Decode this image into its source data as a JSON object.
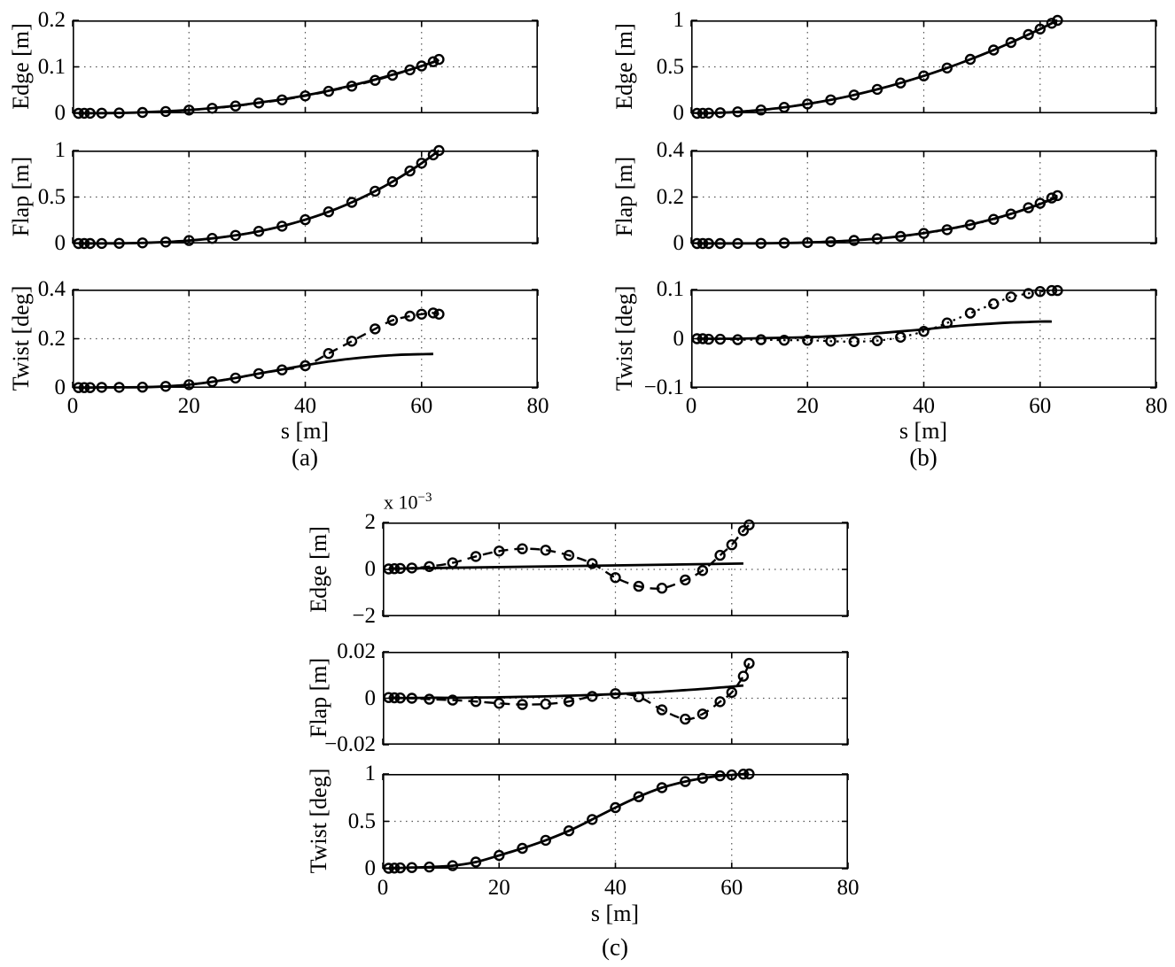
{
  "chart_data": {
    "type": "line",
    "description": "Nine-panel comparison figure: solid line vs circle-marker series of Edge, Flap and Twist distributions along blade span s.",
    "stations": [
      1,
      2,
      3,
      5,
      8,
      12,
      16,
      20,
      24,
      28,
      32,
      36,
      40,
      44,
      48,
      52,
      55,
      58,
      60,
      62,
      63
    ],
    "xaxis": {
      "label": "s [m]",
      "lim": [
        0,
        80
      ],
      "tick_values": [
        0,
        20,
        40,
        60,
        80
      ],
      "ticks": [
        "0",
        "20",
        "40",
        "60",
        "80"
      ],
      "grid": [
        20,
        40,
        60
      ]
    },
    "figures": [
      {
        "id": "a",
        "caption": "(a)",
        "xlabel": "s [m]",
        "panels": [
          {
            "id": "edge",
            "ylabel": "Edge [m]",
            "ylim": [
              0,
              0.2
            ],
            "yticks": [
              {
                "v": 0,
                "t": "0"
              },
              {
                "v": 0.1,
                "t": "0.1"
              },
              {
                "v": 0.2,
                "t": "0.2"
              }
            ],
            "grid_y": [
              0.1
            ],
            "series": [
              {
                "name": "solid-line",
                "style": "solid",
                "y": [
                  0,
                  0.0001,
                  0.0002,
                  0.0003,
                  0.0008,
                  0.0022,
                  0.0043,
                  0.0073,
                  0.0113,
                  0.0164,
                  0.023,
                  0.03,
                  0.0387,
                  0.0486,
                  0.06,
                  0.0725,
                  0.083,
                  0.094,
                  0.102,
                  0.11,
                  0.115
                ]
              },
              {
                "name": "circle-markers",
                "style": "dashed",
                "markers": true,
                "y": [
                  0,
                  0.0001,
                  0.0002,
                  0.0003,
                  0.0008,
                  0.002,
                  0.004,
                  0.007,
                  0.0108,
                  0.0158,
                  0.0222,
                  0.029,
                  0.0375,
                  0.0475,
                  0.0585,
                  0.071,
                  0.082,
                  0.0935,
                  0.102,
                  0.111,
                  0.116
                ]
              }
            ]
          },
          {
            "id": "flap",
            "ylabel": "Flap [m]",
            "ylim": [
              0,
              1
            ],
            "yticks": [
              {
                "v": 0,
                "t": "0"
              },
              {
                "v": 0.5,
                "t": "0.5"
              },
              {
                "v": 1,
                "t": "1"
              }
            ],
            "grid_y": [
              0.5
            ],
            "series": [
              {
                "name": "solid-line",
                "style": "solid",
                "y": [
                  0,
                  0,
                  0.0001,
                  0.0005,
                  0.002,
                  0.0069,
                  0.0164,
                  0.032,
                  0.0553,
                  0.0878,
                  0.1311,
                  0.1866,
                  0.256,
                  0.3406,
                  0.4424,
                  0.5624,
                  0.6652,
                  0.7797,
                  0.8638,
                  0.953,
                  1
                ]
              },
              {
                "name": "circle-markers",
                "style": "dashed",
                "markers": true,
                "y": [
                  0,
                  0,
                  0.0001,
                  0.0005,
                  0.002,
                  0.0069,
                  0.0164,
                  0.032,
                  0.0553,
                  0.0878,
                  0.1311,
                  0.1866,
                  0.256,
                  0.3406,
                  0.4424,
                  0.5624,
                  0.6652,
                  0.7797,
                  0.8638,
                  0.953,
                  1
                ]
              }
            ]
          },
          {
            "id": "twist",
            "ylabel": "Twist [deg]",
            "ylim": [
              0,
              0.4
            ],
            "yticks": [
              {
                "v": 0,
                "t": "0"
              },
              {
                "v": 0.2,
                "t": "0.2"
              },
              {
                "v": 0.4,
                "t": "0.4"
              }
            ],
            "grid_y": [
              0.2
            ],
            "series": [
              {
                "name": "solid-line",
                "style": "solid",
                "s": [
                  1,
                  2,
                  3,
                  5,
                  8,
                  12,
                  16,
                  20,
                  24,
                  28,
                  32,
                  36,
                  40,
                  44,
                  48,
                  52,
                  55,
                  58,
                  60,
                  62
                ],
                "y": [
                  0.001,
                  0.001,
                  0.001,
                  0.002,
                  0.002,
                  0.003,
                  0.006,
                  0.013,
                  0.025,
                  0.04,
                  0.058,
                  0.075,
                  0.092,
                  0.107,
                  0.119,
                  0.128,
                  0.133,
                  0.136,
                  0.137,
                  0.138
                ]
              },
              {
                "name": "circle-markers",
                "style": "dashed",
                "markers": true,
                "y": [
                  0.001,
                  0.001,
                  0.001,
                  0.002,
                  0.002,
                  0.003,
                  0.006,
                  0.013,
                  0.025,
                  0.04,
                  0.058,
                  0.073,
                  0.09,
                  0.14,
                  0.19,
                  0.24,
                  0.275,
                  0.292,
                  0.3,
                  0.305,
                  0.3
                ]
              }
            ]
          }
        ]
      },
      {
        "id": "b",
        "caption": "(b)",
        "xlabel": "s [m]",
        "panels": [
          {
            "id": "edge",
            "ylabel": "Edge [m]",
            "ylim": [
              0,
              1
            ],
            "yticks": [
              {
                "v": 0,
                "t": "0"
              },
              {
                "v": 0.5,
                "t": "0.5"
              },
              {
                "v": 1,
                "t": "1"
              }
            ],
            "grid_y": [
              0.5
            ],
            "series": [
              {
                "name": "solid-line",
                "style": "solid",
                "y": [
                  0.0003,
                  0.001,
                  0.0023,
                  0.0063,
                  0.0161,
                  0.0363,
                  0.0645,
                  0.1008,
                  0.1451,
                  0.1975,
                  0.258,
                  0.3265,
                  0.4031,
                  0.4878,
                  0.5805,
                  0.6813,
                  0.7622,
                  0.8475,
                  0.907,
                  0.9683,
                  1
                ]
              },
              {
                "name": "circle-markers",
                "style": "dashed",
                "markers": true,
                "y": [
                  0.0003,
                  0.001,
                  0.0023,
                  0.0063,
                  0.0161,
                  0.0363,
                  0.0645,
                  0.1008,
                  0.1451,
                  0.1975,
                  0.258,
                  0.3265,
                  0.4031,
                  0.4878,
                  0.5805,
                  0.6813,
                  0.7622,
                  0.8475,
                  0.907,
                  0.9683,
                  1
                ]
              }
            ]
          },
          {
            "id": "flap",
            "ylabel": "Flap [m]",
            "ylim": [
              0,
              0.4
            ],
            "yticks": [
              {
                "v": 0,
                "t": "0"
              },
              {
                "v": 0.2,
                "t": "0.2"
              },
              {
                "v": 0.4,
                "t": "0.4"
              }
            ],
            "grid_y": [
              0.2
            ],
            "series": [
              {
                "name": "solid-line",
                "style": "solid",
                "y": [
                  0,
                  0,
                  0,
                  0.0001,
                  0.0002,
                  0.0008,
                  0.0022,
                  0.0045,
                  0.0082,
                  0.0137,
                  0.0211,
                  0.0314,
                  0.0448,
                  0.0612,
                  0.0817,
                  0.1062,
                  0.1276,
                  0.1522,
                  0.17,
                  0.1896,
                  0.2
                ]
              },
              {
                "name": "circle-markers",
                "style": "dotted",
                "markers": true,
                "y": [
                  0,
                  0,
                  0,
                  0.0001,
                  0.0002,
                  0.0008,
                  0.0021,
                  0.0043,
                  0.0079,
                  0.0132,
                  0.0205,
                  0.0305,
                  0.0435,
                  0.0595,
                  0.08,
                  0.104,
                  0.127,
                  0.154,
                  0.173,
                  0.196,
                  0.206
                ]
              }
            ]
          },
          {
            "id": "twist",
            "ylabel": "Twist [deg]",
            "ylim": [
              -0.1,
              0.1
            ],
            "yticks": [
              {
                "v": -0.1,
                "t": "−0.1"
              },
              {
                "v": 0,
                "t": "0"
              },
              {
                "v": 0.1,
                "t": "0.1"
              }
            ],
            "grid_y": [
              0
            ],
            "series": [
              {
                "name": "solid-line",
                "style": "solid",
                "s": [
                  1,
                  2,
                  3,
                  5,
                  8,
                  12,
                  16,
                  20,
                  24,
                  28,
                  32,
                  36,
                  40,
                  44,
                  48,
                  52,
                  55,
                  58,
                  60,
                  62
                ],
                "y": [
                  0,
                  0,
                  0,
                  0,
                  0,
                  0.001,
                  0.002,
                  0.003,
                  0.005,
                  0.008,
                  0.011,
                  0.015,
                  0.019,
                  0.024,
                  0.028,
                  0.031,
                  0.033,
                  0.034,
                  0.035,
                  0.035
                ]
              },
              {
                "name": "circle-markers",
                "style": "dotted",
                "markers": true,
                "y": [
                  0,
                  0,
                  -0.001,
                  -0.001,
                  -0.002,
                  -0.002,
                  -0.003,
                  -0.003,
                  -0.005,
                  -0.006,
                  -0.004,
                  0.003,
                  0.015,
                  0.032,
                  0.052,
                  0.071,
                  0.085,
                  0.092,
                  0.096,
                  0.098,
                  0.098
                ]
              }
            ]
          }
        ]
      },
      {
        "id": "c",
        "caption": "(c)",
        "xlabel": "s [m]",
        "panels": [
          {
            "id": "edge",
            "ylabel": "Edge [m]",
            "ylim": [
              -0.002,
              0.002
            ],
            "yticks": [
              {
                "v": -0.002,
                "t": "−2"
              },
              {
                "v": 0,
                "t": "0"
              },
              {
                "v": 0.002,
                "t": "2"
              }
            ],
            "grid_y": [
              0
            ],
            "multiplier": "x 10",
            "multiplier_exp": "−3",
            "series": [
              {
                "name": "solid-line",
                "style": "solid",
                "s": [
                  1,
                  62
                ],
                "y": [
                  3e-05,
                  0.00025
                ]
              },
              {
                "name": "circle-markers",
                "style": "dashed",
                "markers": true,
                "y": [
                  2e-05,
                  3e-05,
                  4e-05,
                  6e-05,
                  0.00012,
                  0.00028,
                  0.00055,
                  0.00078,
                  0.00088,
                  0.00082,
                  0.0006,
                  0.00025,
                  -0.00035,
                  -0.00072,
                  -0.0008,
                  -0.00045,
                  -5e-05,
                  0.0006,
                  0.00105,
                  0.00165,
                  0.0019
                ]
              }
            ]
          },
          {
            "id": "flap",
            "ylabel": "Flap [m]",
            "ylim": [
              -0.02,
              0.02
            ],
            "yticks": [
              {
                "v": -0.02,
                "t": "−0.02"
              },
              {
                "v": 0,
                "t": "0"
              },
              {
                "v": 0.02,
                "t": "0.02"
              }
            ],
            "grid_y": [
              0
            ],
            "series": [
              {
                "name": "solid-line",
                "style": "solid",
                "s": [
                  1,
                  2,
                  3,
                  5,
                  8,
                  12,
                  16,
                  20,
                  24,
                  28,
                  32,
                  36,
                  40,
                  44,
                  48,
                  52,
                  55,
                  58,
                  60,
                  62
                ],
                "y": [
                  0.0001,
                  0.0001,
                  0.0001,
                  0.0001,
                  0.0002,
                  0.0002,
                  0.0003,
                  0.0004,
                  0.0006,
                  0.0008,
                  0.0011,
                  0.0014,
                  0.0018,
                  0.0023,
                  0.0028,
                  0.0035,
                  0.004,
                  0.0046,
                  0.005,
                  0.0055
                ]
              },
              {
                "name": "circle-markers",
                "style": "dashed",
                "markers": true,
                "y": [
                  0.0003,
                  0.0002,
                  0.0001,
                  0,
                  -0.0004,
                  -0.0008,
                  -0.0014,
                  -0.0022,
                  -0.0027,
                  -0.0025,
                  -0.0014,
                  0.0008,
                  0.002,
                  0.0006,
                  -0.005,
                  -0.009,
                  -0.0068,
                  -0.0015,
                  0.0025,
                  0.0095,
                  0.015
                ]
              }
            ]
          },
          {
            "id": "twist",
            "ylabel": "Twist [deg]",
            "ylim": [
              0,
              1
            ],
            "yticks": [
              {
                "v": 0,
                "t": "0"
              },
              {
                "v": 0.5,
                "t": "0.5"
              },
              {
                "v": 1,
                "t": "1"
              }
            ],
            "grid_y": [
              0.5
            ],
            "series": [
              {
                "name": "solid-line",
                "style": "solid",
                "y": [
                  0.005,
                  0.007,
                  0.008,
                  0.012,
                  0.018,
                  0.032,
                  0.07,
                  0.14,
                  0.215,
                  0.3,
                  0.4,
                  0.52,
                  0.645,
                  0.76,
                  0.855,
                  0.92,
                  0.955,
                  0.98,
                  0.99,
                  0.998,
                  1
                ]
              },
              {
                "name": "circle-markers",
                "style": "dotted",
                "markers": true,
                "y": [
                  0.005,
                  0.007,
                  0.008,
                  0.012,
                  0.018,
                  0.032,
                  0.07,
                  0.14,
                  0.215,
                  0.3,
                  0.4,
                  0.52,
                  0.645,
                  0.76,
                  0.855,
                  0.92,
                  0.955,
                  0.98,
                  0.99,
                  0.998,
                  1
                ]
              }
            ]
          }
        ]
      }
    ]
  }
}
